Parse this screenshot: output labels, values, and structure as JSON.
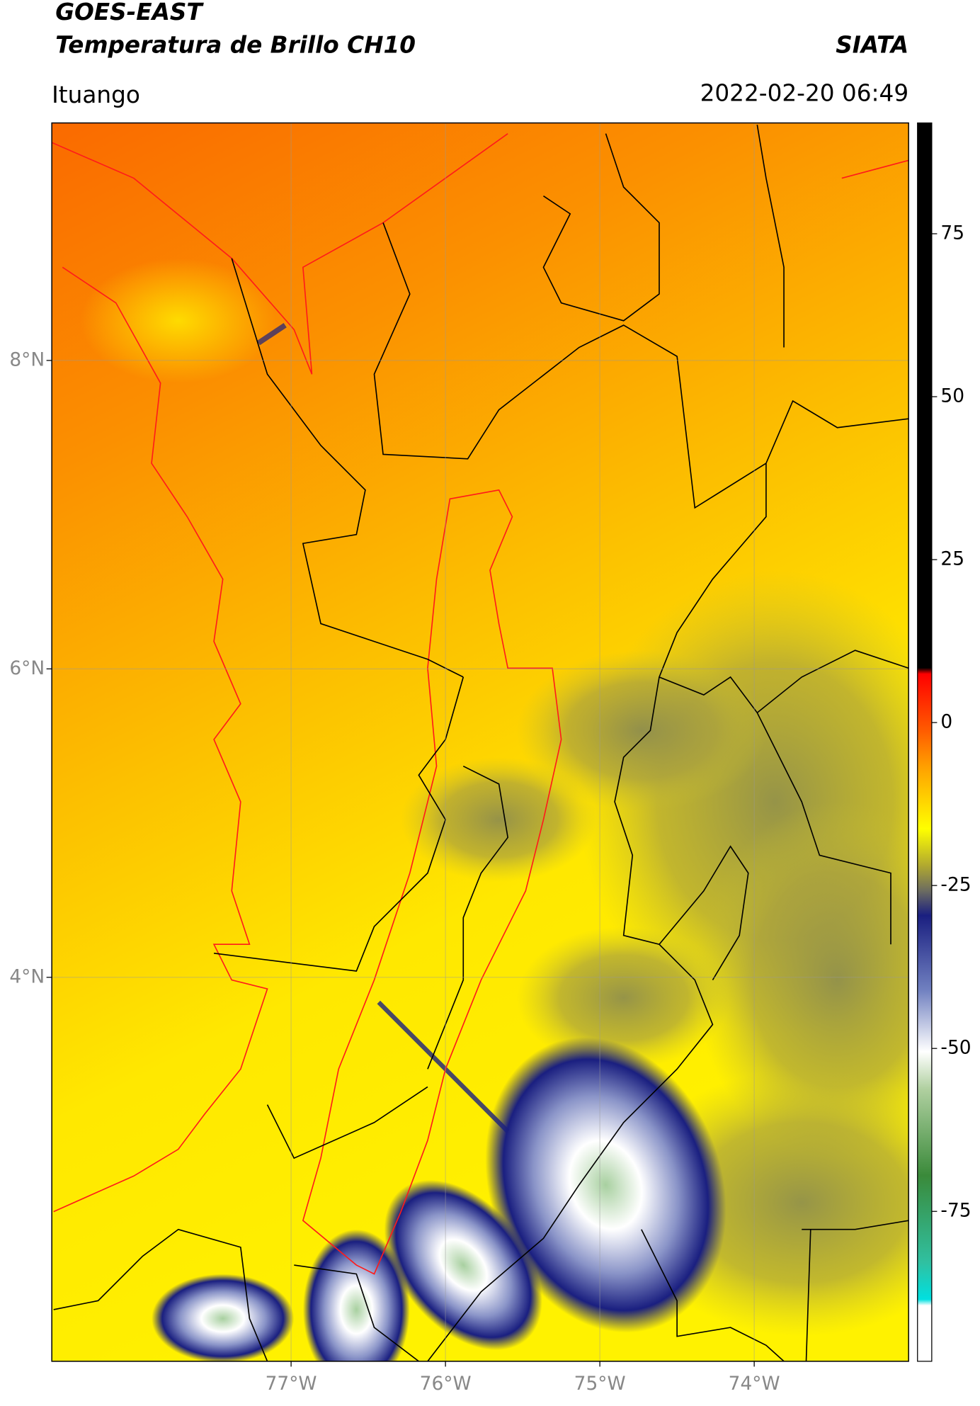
{
  "header": {
    "satellite": "GOES-EAST",
    "product": "Temperatura de Brillo CH10",
    "agency": "SIATA",
    "location": "Ituango",
    "timestamp": "2022-02-20 06:49"
  },
  "chart_data": {
    "type": "map",
    "xlim": [
      -78.55,
      -73.0
    ],
    "ylim": [
      1.51,
      9.54
    ],
    "xticks": [
      {
        "value": -77,
        "label": "77°W"
      },
      {
        "value": -76,
        "label": "76°W"
      },
      {
        "value": -75,
        "label": "75°W"
      },
      {
        "value": -74,
        "label": "74°W"
      }
    ],
    "yticks": [
      {
        "value": 8,
        "label": "8°N"
      },
      {
        "value": 6,
        "label": "6°N"
      },
      {
        "value": 4,
        "label": "4°N"
      }
    ],
    "grid": true,
    "colorbar": {
      "clim": [
        -98,
        92
      ],
      "ticks": [
        75,
        50,
        25,
        0,
        -25,
        -50,
        -75
      ]
    }
  }
}
